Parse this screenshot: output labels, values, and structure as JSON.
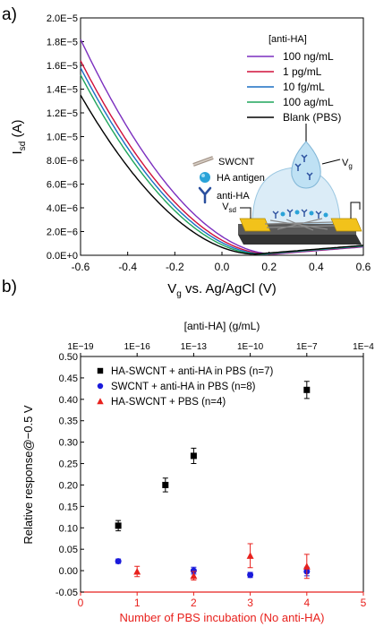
{
  "chart_data": [
    {
      "panel_label": "a)",
      "type": "line",
      "xlabel": "V",
      "xlabel_sub": "g",
      "xlabel_rest": " vs. Ag/AgCl (V)",
      "ylabel": "I",
      "ylabel_sub": "sd",
      "ylabel_rest": " (A)",
      "xlim": [
        -0.6,
        0.6
      ],
      "ylim": [
        0,
        2e-05
      ],
      "xticks": [
        -0.6,
        -0.4,
        -0.2,
        0.0,
        0.2,
        0.4,
        0.6
      ],
      "xtick_labels": [
        "-0.6",
        "-0.4",
        "-0.2",
        "0.0",
        "0.2",
        "0.4",
        "0.6"
      ],
      "yticks": [
        0,
        2e-06,
        4e-06,
        6e-06,
        8e-06,
        1e-05,
        1.2e-05,
        1.4e-05,
        1.6e-05,
        1.8e-05,
        2e-05
      ],
      "ytick_labels": [
        "0.0E+0",
        "2.0E−6",
        "4.0E−6",
        "6.0E−6",
        "8.0E−6",
        "1.0E−5",
        "1.2E−5",
        "1.4E−5",
        "1.6E−5",
        "1.8E−5",
        "2.0E−5"
      ],
      "legend_title": "[anti-HA]",
      "legend_position": "top-right",
      "series": [
        {
          "name": "100 ng/mL",
          "color": "#7b2fbf",
          "i0": 1.82e-05,
          "vmin": 0.22
        },
        {
          "name": "1 pg/mL",
          "color": "#d0103a",
          "i0": 1.64e-05,
          "vmin": 0.2
        },
        {
          "name": "10 fg/mL",
          "color": "#1a6fc4",
          "i0": 1.58e-05,
          "vmin": 0.18
        },
        {
          "name": "100 ag/mL",
          "color": "#1fa55b",
          "i0": 1.52e-05,
          "vmin": 0.16
        },
        {
          "name": "Blank (PBS)",
          "color": "#000000",
          "i0": 1.35e-05,
          "vmin": 0.14
        }
      ],
      "inset_labels": {
        "swcnt": "SWCNT",
        "antigen": "HA antigen",
        "antibody": "anti-HA",
        "vg": "V",
        "vg_sub": "g",
        "vsd": "V",
        "vsd_sub": "sd"
      }
    },
    {
      "panel_label": "b)",
      "type": "scatter",
      "ylabel": "Relative response@−0.5 V",
      "xlabel_bottom": "Number of PBS incubation (No anti-HA)",
      "xlabel_top": "[anti-HA] (g/mL)",
      "xlim": [
        0,
        5
      ],
      "ylim": [
        -0.05,
        0.5
      ],
      "xticks": [
        0,
        1,
        2,
        3,
        4,
        5
      ],
      "xtick_labels": [
        "0",
        "1",
        "2",
        "3",
        "4",
        "5"
      ],
      "yticks": [
        -0.05,
        0,
        0.05,
        0.1,
        0.15,
        0.2,
        0.25,
        0.3,
        0.35,
        0.4,
        0.45,
        0.5
      ],
      "ytick_labels": [
        "-0.05",
        "0.00",
        "0.05",
        "0.10",
        "0.15",
        "0.20",
        "0.25",
        "0.30",
        "0.35",
        "0.40",
        "0.45",
        "0.50"
      ],
      "top_ticks_log": [
        -19,
        -16,
        -13,
        -10,
        -7,
        -4
      ],
      "top_tick_labels": [
        "1E−19",
        "1E−16",
        "1E−13",
        "1E−10",
        "1E−7",
        "1E−4"
      ],
      "bottom_axis_color": "#e8211d",
      "legend_position": "top-left",
      "series": [
        {
          "name": "HA-SWCNT + anti-HA in PBS (n=7)",
          "marker": "square",
          "color": "#000000",
          "axis": "top",
          "x_log": [
            -17,
            -14.5,
            -13,
            -7
          ],
          "y": [
            0.105,
            0.2,
            0.268,
            0.422
          ],
          "err": [
            0.012,
            0.016,
            0.018,
            0.02
          ]
        },
        {
          "name": "SWCNT + anti-HA in PBS (n=8)",
          "marker": "circle",
          "color": "#1a1adb",
          "axis": "top",
          "x_log": [
            -17,
            -13,
            -10,
            -7
          ],
          "y": [
            0.022,
            0.0,
            -0.01,
            -0.002
          ],
          "err": [
            0.005,
            0.008,
            0.006,
            0.01
          ]
        },
        {
          "name": "HA-SWCNT + PBS (n=4)",
          "marker": "triangle",
          "color": "#e8211d",
          "axis": "bottom",
          "x": [
            1,
            2,
            3,
            4
          ],
          "y": [
            -0.002,
            -0.012,
            0.035,
            0.01
          ],
          "err": [
            0.012,
            0.01,
            0.028,
            0.028
          ]
        }
      ]
    }
  ]
}
